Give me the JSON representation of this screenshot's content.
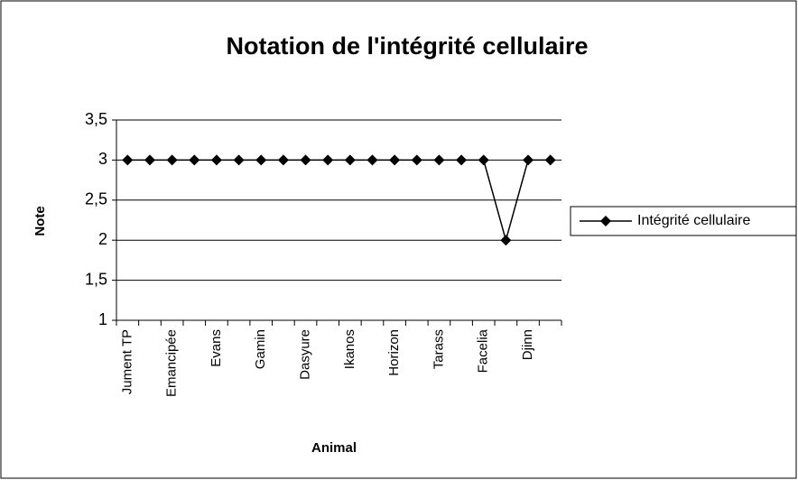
{
  "chart_data": {
    "type": "line",
    "title": "Notation de l'intégrité cellulaire",
    "x_label": "Animal",
    "y_label": "Note",
    "categories": [
      "Jument TP",
      null,
      "Emancipée",
      null,
      "Evans",
      null,
      "Gamin",
      null,
      "Dasyure",
      null,
      "Ikanos",
      null,
      "Horizon",
      null,
      "Tarass",
      null,
      "Facelia",
      null,
      "Djinn",
      null
    ],
    "series": [
      {
        "name": "Intégrité cellulaire",
        "color": "#000000",
        "values": [
          3,
          3,
          3,
          3,
          3,
          3,
          3,
          3,
          3,
          3,
          3,
          3,
          3,
          3,
          3,
          3,
          3,
          2,
          3,
          3
        ]
      }
    ],
    "ylim": [
      1,
      3.5
    ],
    "yticks": [
      1,
      {
        "value": 1.5,
        "label": "1,5"
      },
      2,
      {
        "value": 2.5,
        "label": "2,5"
      },
      3,
      {
        "value": 3.5,
        "label": "3,5"
      }
    ],
    "grid": true,
    "legend": "right"
  }
}
